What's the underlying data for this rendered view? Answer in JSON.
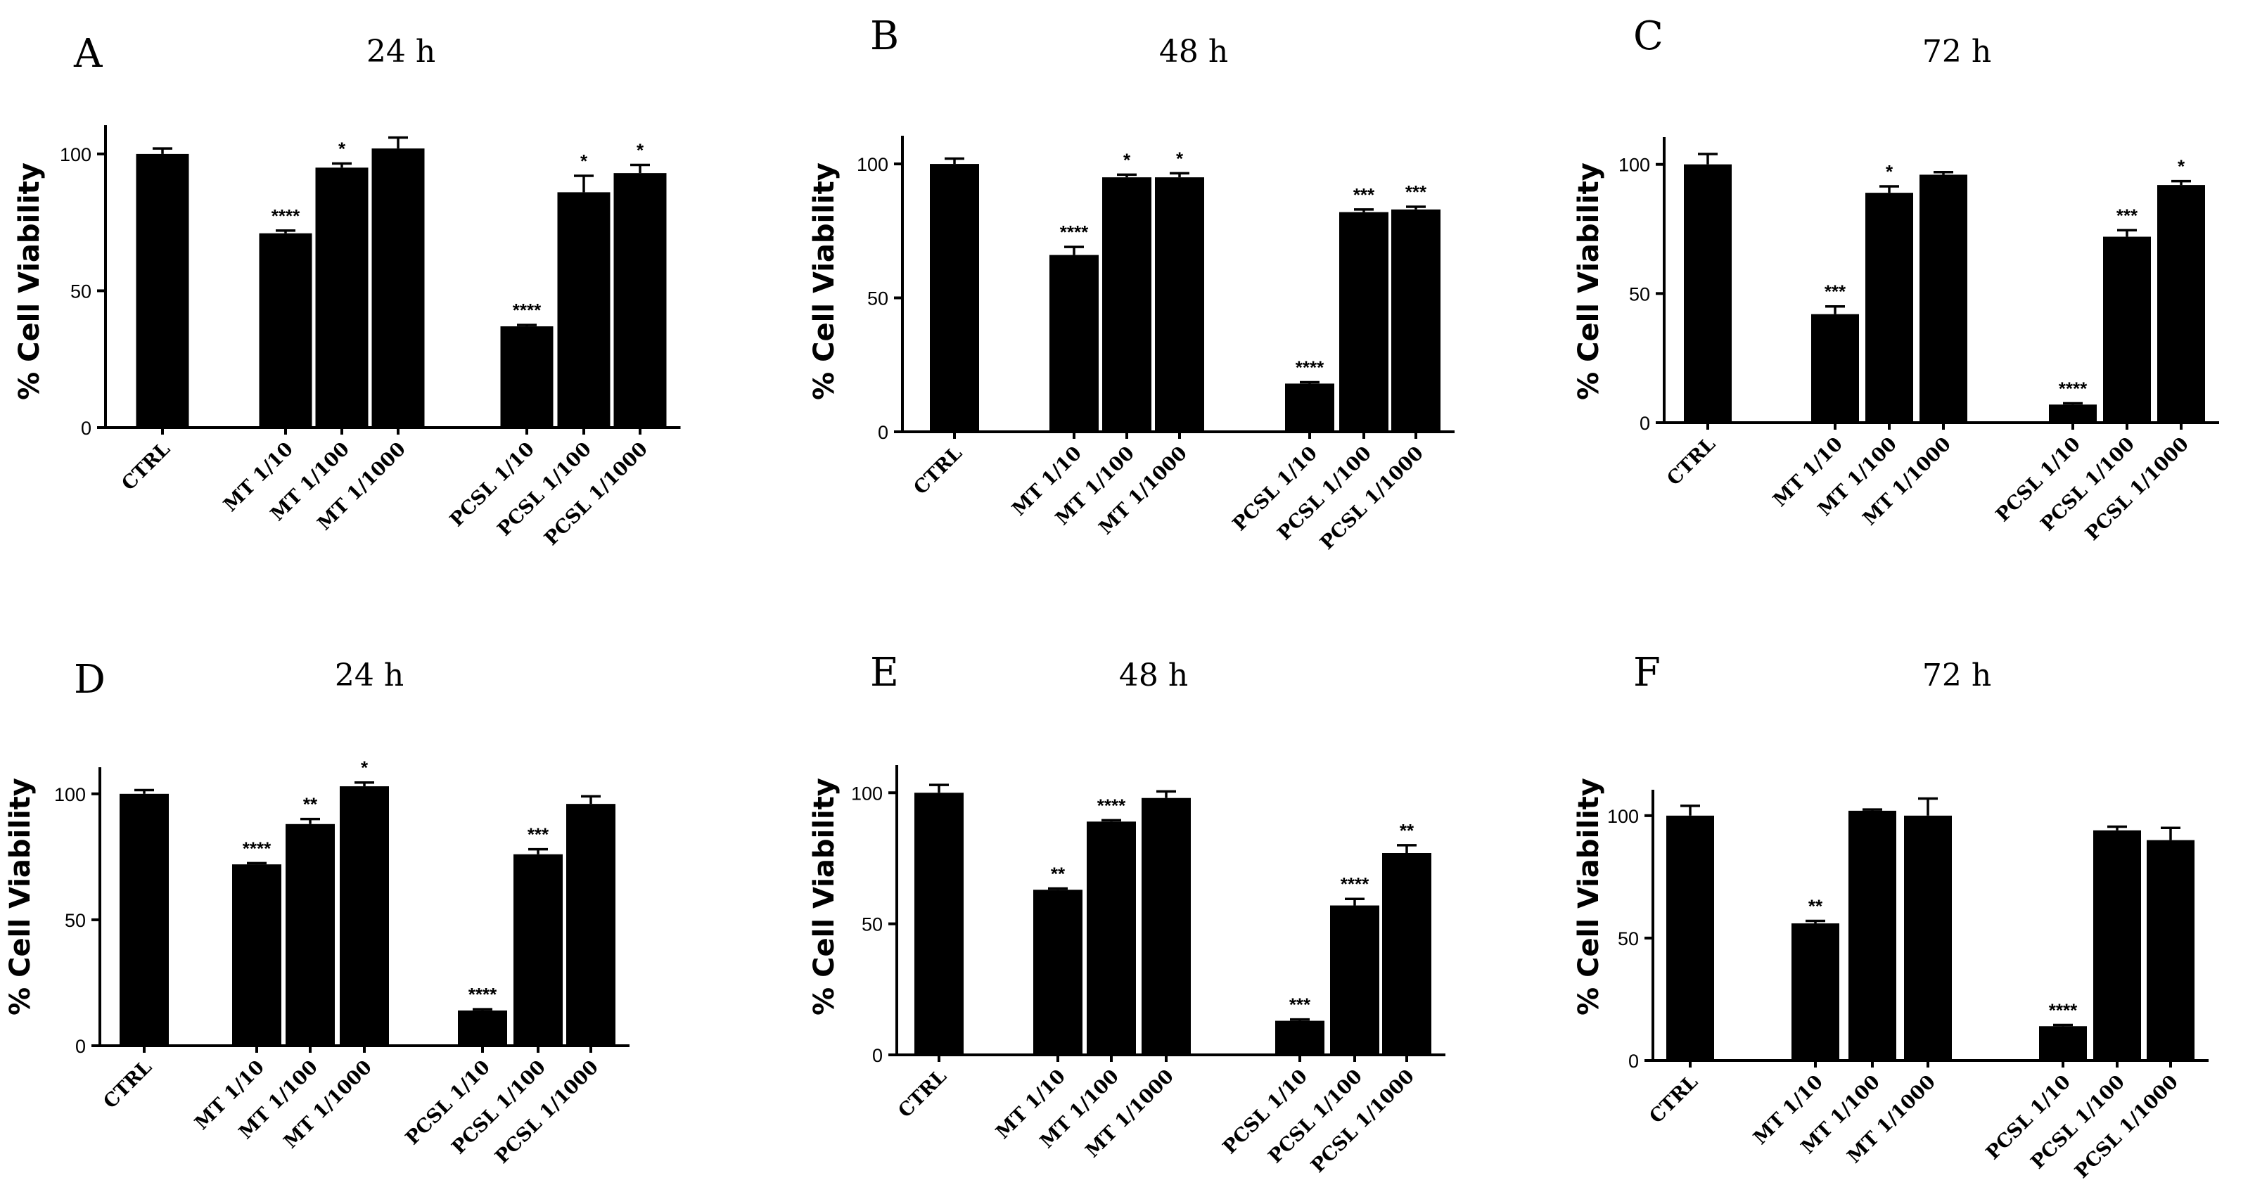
{
  "chart_data": [
    {
      "panel": "A",
      "title": "24 h",
      "type": "bar",
      "ylabel": "% Cell Viability",
      "ylim": [
        0,
        110
      ],
      "yticks": [
        0,
        50,
        100
      ],
      "categories": [
        "CTRL",
        "MT 1/10",
        "MT 1/100",
        "MT 1/1000",
        "PCSL 1/10",
        "PCSL 1/100",
        "PCSL 1/1000"
      ],
      "values": [
        100,
        71,
        95,
        102,
        37,
        86,
        93
      ],
      "errors": [
        2,
        1,
        1.5,
        4,
        0.5,
        6,
        3
      ],
      "significance": [
        "",
        "****",
        "*",
        "",
        "****",
        "*",
        "*"
      ]
    },
    {
      "panel": "B",
      "title": "48 h",
      "type": "bar",
      "ylabel": "% Cell Viability",
      "ylim": [
        0,
        110
      ],
      "yticks": [
        0,
        50,
        100
      ],
      "categories": [
        "CTRL",
        "MT 1/10",
        "MT 1/100",
        "MT 1/1000",
        "PCSL 1/10",
        "PCSL 1/100",
        "PCSL 1/1000"
      ],
      "values": [
        100,
        66,
        95,
        95,
        18,
        82,
        83
      ],
      "errors": [
        2,
        3,
        1,
        1.5,
        0.5,
        1,
        1
      ],
      "significance": [
        "",
        "****",
        "*",
        "*",
        "****",
        "***",
        "***"
      ]
    },
    {
      "panel": "C",
      "title": "72 h",
      "type": "bar",
      "ylabel": "% Cell Viability",
      "ylim": [
        0,
        110
      ],
      "yticks": [
        0,
        50,
        100
      ],
      "categories": [
        "CTRL",
        "MT 1/10",
        "MT 1/100",
        "MT 1/1000",
        "PCSL 1/10",
        "PCSL 1/100",
        "PCSL 1/1000"
      ],
      "values": [
        100,
        42,
        89,
        96,
        7,
        72,
        92
      ],
      "errors": [
        4,
        3,
        2.5,
        1,
        0.5,
        2.5,
        1.5
      ],
      "significance": [
        "",
        "***",
        "*",
        "",
        "****",
        "***",
        "*"
      ]
    },
    {
      "panel": "D",
      "title": "24 h",
      "type": "bar",
      "ylabel": "% Cell Viability",
      "ylim": [
        0,
        110
      ],
      "yticks": [
        0,
        50,
        100
      ],
      "categories": [
        "CTRL",
        "MT 1/10",
        "MT 1/100",
        "MT 1/1000",
        "PCSL 1/10",
        "PCSL 1/100",
        "PCSL 1/1000"
      ],
      "values": [
        100,
        72,
        88,
        103,
        14,
        76,
        96
      ],
      "errors": [
        1.5,
        0.5,
        2,
        1.5,
        0.5,
        2,
        3
      ],
      "significance": [
        "",
        "****",
        "**",
        "*",
        "****",
        "***",
        ""
      ]
    },
    {
      "panel": "E",
      "title": "48 h",
      "type": "bar",
      "ylabel": "% Cell Viability",
      "ylim": [
        0,
        110
      ],
      "yticks": [
        0,
        50,
        100
      ],
      "categories": [
        "CTRL",
        "MT 1/10",
        "MT 1/100",
        "MT 1/1000",
        "PCSL 1/10",
        "PCSL 1/100",
        "PCSL 1/1000"
      ],
      "values": [
        100,
        63,
        89,
        98,
        13,
        57,
        77
      ],
      "errors": [
        3,
        0.5,
        0.5,
        2.5,
        0.5,
        2.5,
        3
      ],
      "significance": [
        "",
        "**",
        "****",
        "",
        "***",
        "****",
        "**"
      ]
    },
    {
      "panel": "F",
      "title": "72 h",
      "type": "bar",
      "ylabel": "% Cell Viability",
      "ylim": [
        0,
        110
      ],
      "yticks": [
        0,
        50,
        100
      ],
      "categories": [
        "CTRL",
        "MT 1/10",
        "MT 1/100",
        "MT 1/1000",
        "PCSL 1/10",
        "PCSL 1/100",
        "PCSL 1/1000"
      ],
      "values": [
        100,
        56,
        102,
        100,
        14,
        94,
        90
      ],
      "errors": [
        4,
        1,
        0.5,
        7,
        0.5,
        1.5,
        5
      ],
      "significance": [
        "",
        "**",
        "",
        "",
        "****",
        "",
        ""
      ]
    }
  ]
}
